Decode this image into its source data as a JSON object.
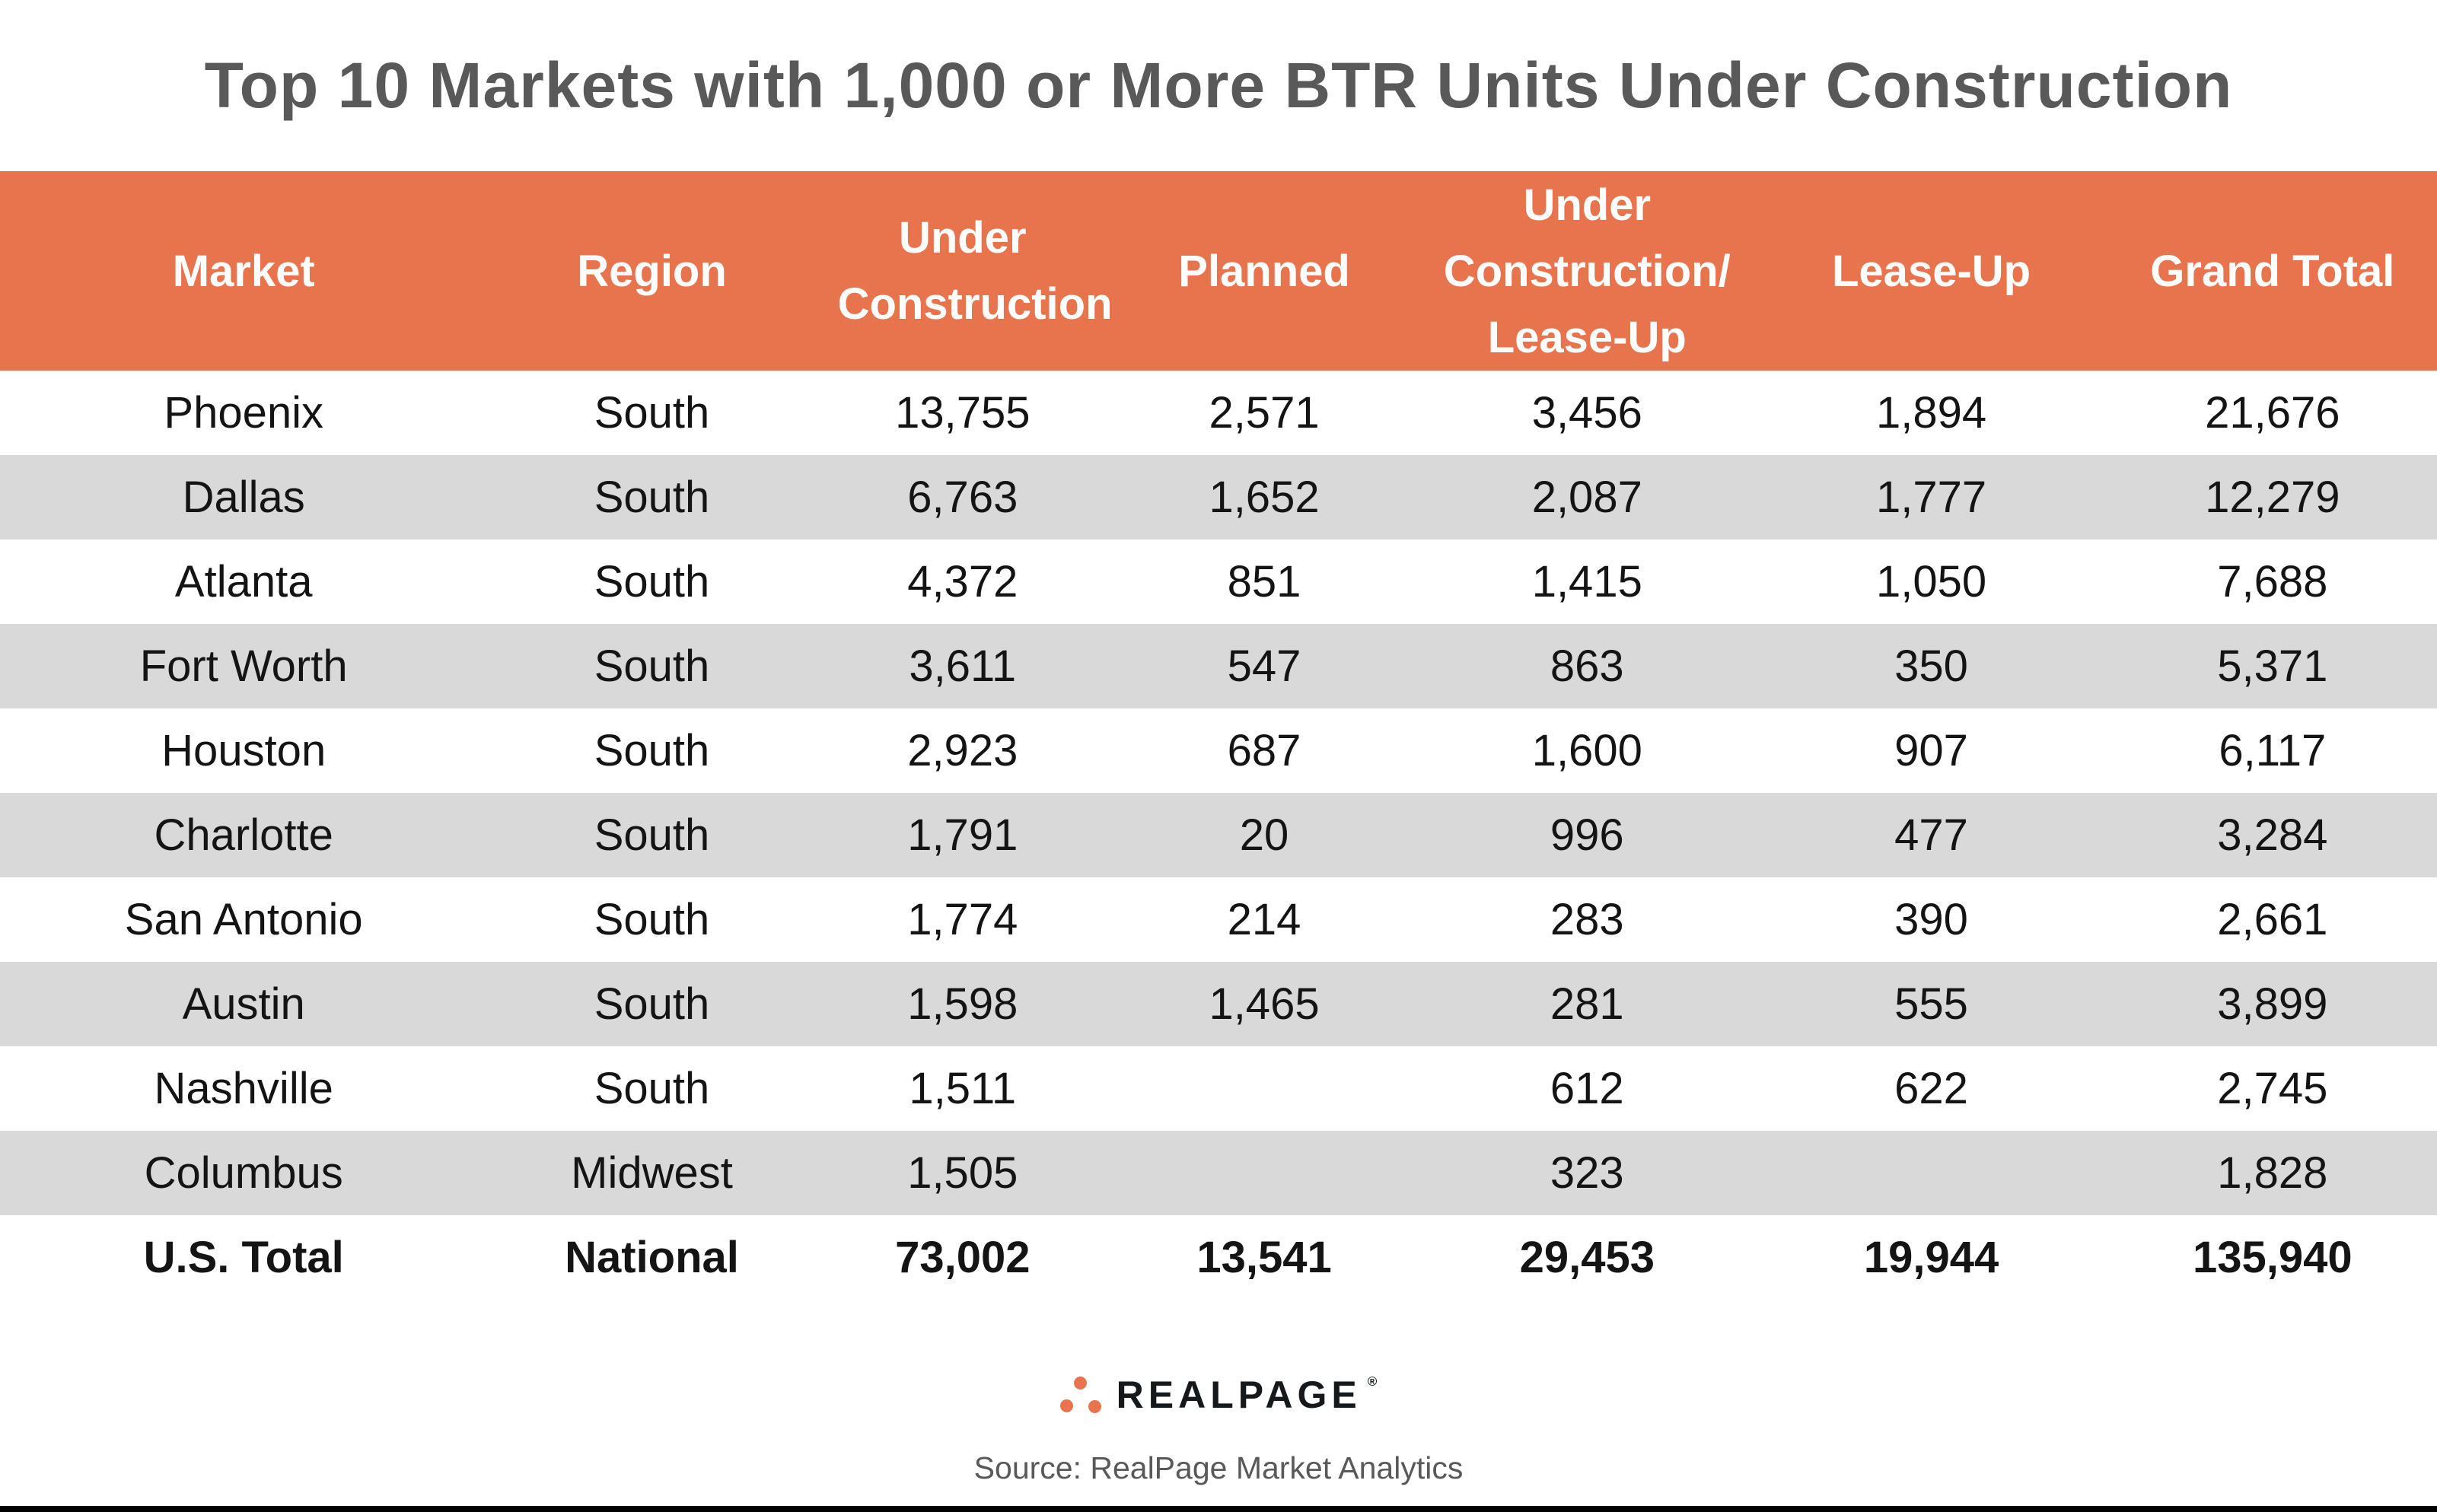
{
  "title": "Top 10 Markets with 1,000 or More BTR Units Under Construction",
  "chart_data": {
    "type": "table",
    "title": "Top 10 Markets with 1,000 or More BTR Units Under Construction",
    "columns": [
      "Market",
      "Region",
      "Under Construction",
      "Planned",
      "Under Construction/ Lease-Up",
      "Lease-Up",
      "Grand Total"
    ],
    "rows": [
      [
        "Phoenix",
        "South",
        "13,755",
        "2,571",
        "3,456",
        "1,894",
        "21,676"
      ],
      [
        "Dallas",
        "South",
        "6,763",
        "1,652",
        "2,087",
        "1,777",
        "12,279"
      ],
      [
        "Atlanta",
        "South",
        "4,372",
        "851",
        "1,415",
        "1,050",
        "7,688"
      ],
      [
        "Fort Worth",
        "South",
        "3,611",
        "547",
        "863",
        "350",
        "5,371"
      ],
      [
        "Houston",
        "South",
        "2,923",
        "687",
        "1,600",
        "907",
        "6,117"
      ],
      [
        "Charlotte",
        "South",
        "1,791",
        "20",
        "996",
        "477",
        "3,284"
      ],
      [
        "San Antonio",
        "South",
        "1,774",
        "214",
        "283",
        "390",
        "2,661"
      ],
      [
        "Austin",
        "South",
        "1,598",
        "1,465",
        "281",
        "555",
        "3,899"
      ],
      [
        "Nashville",
        "South",
        "1,511",
        "",
        "612",
        "622",
        "2,745"
      ],
      [
        "Columbus",
        "Midwest",
        "1,505",
        "",
        "323",
        "",
        "1,828"
      ],
      [
        "U.S. Total",
        "National",
        "73,002",
        "13,541",
        "29,453",
        "19,944",
        "135,940"
      ]
    ],
    "total_row_index": 10,
    "legend_position": "none",
    "grid": false
  },
  "footer": {
    "brand": "REALPAGE",
    "registered": "®",
    "logo_icon": "three-orange-dots-triangle",
    "source": "Source: RealPage Market Analytics"
  },
  "colors": {
    "header_bg": "#E8744E",
    "header_text": "#FFFFFF",
    "row_alt_bg": "#D9D9D9",
    "row_bg": "#FFFFFF",
    "body_text": "#141414",
    "title_text": "#595959",
    "source_text": "#595959",
    "wordmark_text": "#15191C",
    "logo_dot": "#E8744E",
    "bottom_bar": "#000000"
  }
}
